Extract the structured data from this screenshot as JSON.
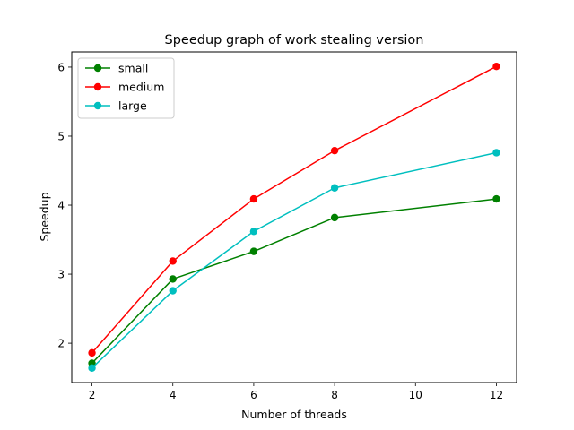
{
  "chart_data": {
    "type": "line",
    "title": "Speedup graph of work stealing version",
    "xlabel": "Number of threads",
    "ylabel": "Speedup",
    "x": [
      2,
      4,
      6,
      8,
      12
    ],
    "xlim": [
      1.5,
      12.5
    ],
    "ylim": [
      1.43,
      6.22
    ],
    "xticks": [
      2,
      4,
      6,
      8,
      10,
      12
    ],
    "yticks": [
      2,
      3,
      4,
      5,
      6
    ],
    "grid": false,
    "legend_position": "top-left",
    "series": [
      {
        "name": "small",
        "color": "#008000",
        "values": [
          1.71,
          2.93,
          3.33,
          3.82,
          4.09
        ]
      },
      {
        "name": "medium",
        "color": "#ff0000",
        "values": [
          1.86,
          3.19,
          4.09,
          4.79,
          6.01
        ]
      },
      {
        "name": "large",
        "color": "#00bfbf",
        "values": [
          1.64,
          2.76,
          3.62,
          4.25,
          4.76
        ]
      }
    ]
  }
}
